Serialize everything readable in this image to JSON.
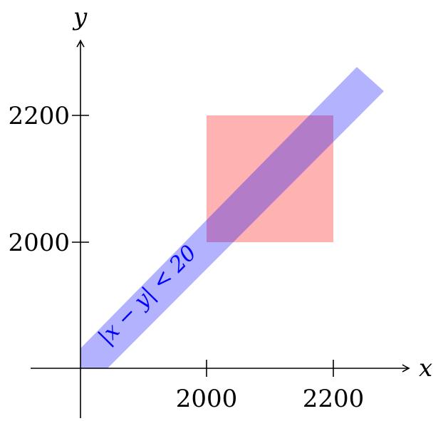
{
  "axes": {
    "x_label": "x",
    "y_label": "y",
    "x_ticks": [
      "2000",
      "2200"
    ],
    "y_ticks": [
      "2000",
      "2200"
    ]
  },
  "band": {
    "label": "|x − y| < 20",
    "color": "#0000ff",
    "opacity": 0.3
  },
  "square": {
    "color": "#ff0000",
    "opacity": 0.3
  }
}
